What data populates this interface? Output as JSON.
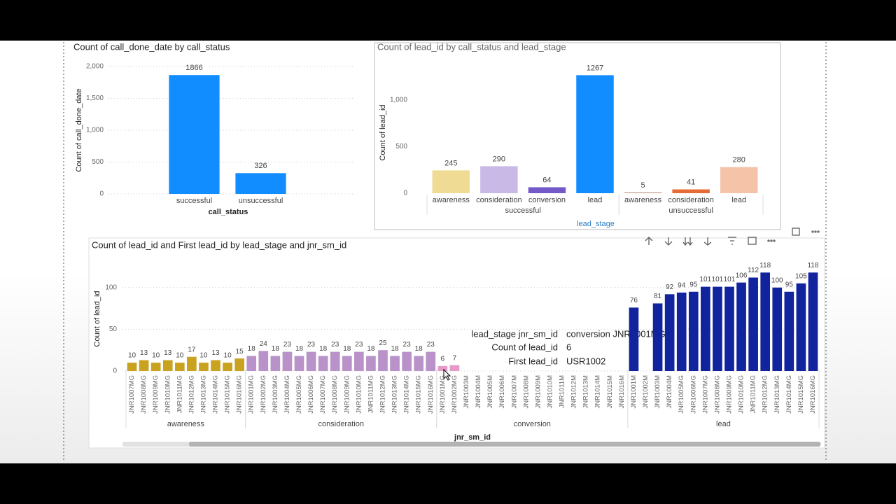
{
  "chart_data": [
    {
      "type": "bar",
      "title": "Count of call_done_date by call_status",
      "y_label": "Count of call_done_date",
      "x_label": "call_status",
      "categories": [
        "successful",
        "unsuccessful"
      ],
      "values": [
        1866,
        326
      ],
      "color": "#118DFF",
      "ylim": [
        0,
        2000
      ],
      "yticks": [
        0,
        500,
        {
          "value": 1000,
          "label": "1,000"
        },
        {
          "value": 1500,
          "label": "1,500"
        },
        {
          "value": 2000,
          "label": "2,000"
        }
      ],
      "grid": true
    },
    {
      "type": "bar",
      "title": "Count of lead_id by call_status and lead_stage",
      "y_label": "Count of lead_id",
      "x_label": "lead_stage",
      "groups": [
        {
          "name": "successful",
          "categories": [
            "awareness",
            "consideration",
            "conversion",
            "lead"
          ],
          "values": [
            245,
            290,
            64,
            1267
          ],
          "colors": [
            "#EFDB94",
            "#C9B9E6",
            "#7459C8",
            "#118DFF"
          ]
        },
        {
          "name": "unsuccessful",
          "categories": [
            "awareness",
            "consideration",
            "lead"
          ],
          "values": [
            5,
            41,
            280
          ],
          "colors": [
            "#8A4B2B",
            "#E66C37",
            "#F4C3A8"
          ]
        }
      ],
      "ylim": [
        0,
        1300
      ],
      "yticks": [
        0,
        500,
        {
          "value": 1000,
          "label": "1,000"
        }
      ],
      "grid": false
    },
    {
      "type": "bar",
      "title": "Count of lead_id and First lead_id by lead_stage and jnr_sm_id",
      "y_label": "Count of lead_id",
      "x_label": "jnr_sm_id",
      "groups": [
        {
          "name": "awareness",
          "color": "#C9A21F",
          "categories": [
            "JNR1007MG",
            "JNR1008MG",
            "JNR1009MG",
            "JNR1010MG",
            "JNR1011MG",
            "JNR1012MG",
            "JNR1013MG",
            "JNR1014MG",
            "JNR1015MG",
            "JNR1016MG"
          ],
          "values": [
            10,
            13,
            10,
            13,
            10,
            17,
            10,
            13,
            10,
            15
          ]
        },
        {
          "name": "consideration",
          "color": "#B892C8",
          "categories": [
            "JNR1001MG",
            "JNR1002MG",
            "JNR1003MG",
            "JNR1004MG",
            "JNR1005MG",
            "JNR1006MG",
            "JNR1007MG",
            "JNR1008MG",
            "JNR1009MG",
            "JNR1010MG",
            "JNR1011MG",
            "JNR1012MG",
            "JNR1013MG",
            "JNR1014MG",
            "JNR1015MG",
            "JNR1016MG"
          ],
          "values": [
            18,
            24,
            18,
            23,
            18,
            23,
            18,
            23,
            18,
            23,
            18,
            25,
            18,
            23,
            18,
            23
          ]
        },
        {
          "name": "conversion",
          "color": "#E59AC8",
          "categories": [
            "JNR1001MG",
            "JNR1002MG",
            "JNR1003M",
            "JNR1004M",
            "JNR1005M",
            "JNR1006M",
            "JNR1007M",
            "JNR1008M",
            "JNR1009M",
            "JNR1010M",
            "JNR1011M",
            "JNR1012M",
            "JNR1013M",
            "JNR1014M",
            "JNR1015M",
            "JNR1016M"
          ],
          "values": [
            6,
            7,
            null,
            null,
            null,
            null,
            null,
            null,
            null,
            null,
            null,
            null,
            null,
            null,
            null,
            null
          ]
        },
        {
          "name": "lead",
          "color": "#12239E",
          "categories": [
            "JNR1001M",
            "JNR1002M",
            "JNR1003M",
            "JNR1004M",
            "JNR1005MG",
            "JNR1006MG",
            "JNR1007MG",
            "JNR1008MG",
            "JNR1009MG",
            "JNR1010MG",
            "JNR1011MG",
            "JNR1012MG",
            "JNR1013MG",
            "JNR1014MG",
            "JNR1015MG",
            "JNR1016MG"
          ],
          "values": [
            76,
            null,
            81,
            92,
            94,
            95,
            101,
            101,
            101,
            106,
            112,
            118,
            100,
            95,
            105,
            118
          ]
        }
      ],
      "ylim": [
        0,
        125
      ],
      "yticks": [
        0,
        50,
        100
      ],
      "grid": true
    }
  ],
  "tooltip": {
    "rows": [
      [
        "lead_stage jnr_sm_id",
        "conversion JNR1001MG"
      ],
      [
        "Count of lead_id",
        "6"
      ],
      [
        "First lead_id",
        "USR1002"
      ]
    ]
  }
}
